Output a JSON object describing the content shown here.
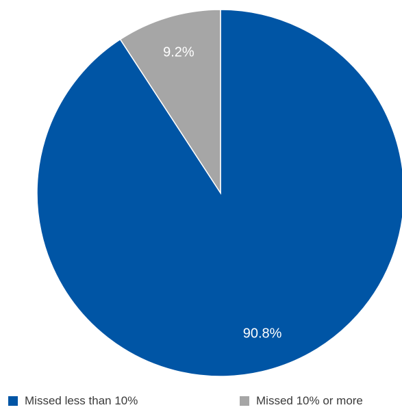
{
  "chart_data": {
    "type": "pie",
    "slices": [
      {
        "label": "Missed less than 10%",
        "value": 90.8,
        "display": "90.8%",
        "color": "#0055a5"
      },
      {
        "label": "Missed 10% or more",
        "value": 9.2,
        "display": "9.2%",
        "color": "#a6a6a6"
      }
    ],
    "start_angle": "12 o'clock",
    "direction": "clockwise",
    "legend_position": "bottom"
  },
  "legend": {
    "items": [
      {
        "label": "Missed less than 10%",
        "color": "#0055a5"
      },
      {
        "label": "Missed 10% or more",
        "color": "#a6a6a6"
      }
    ]
  }
}
